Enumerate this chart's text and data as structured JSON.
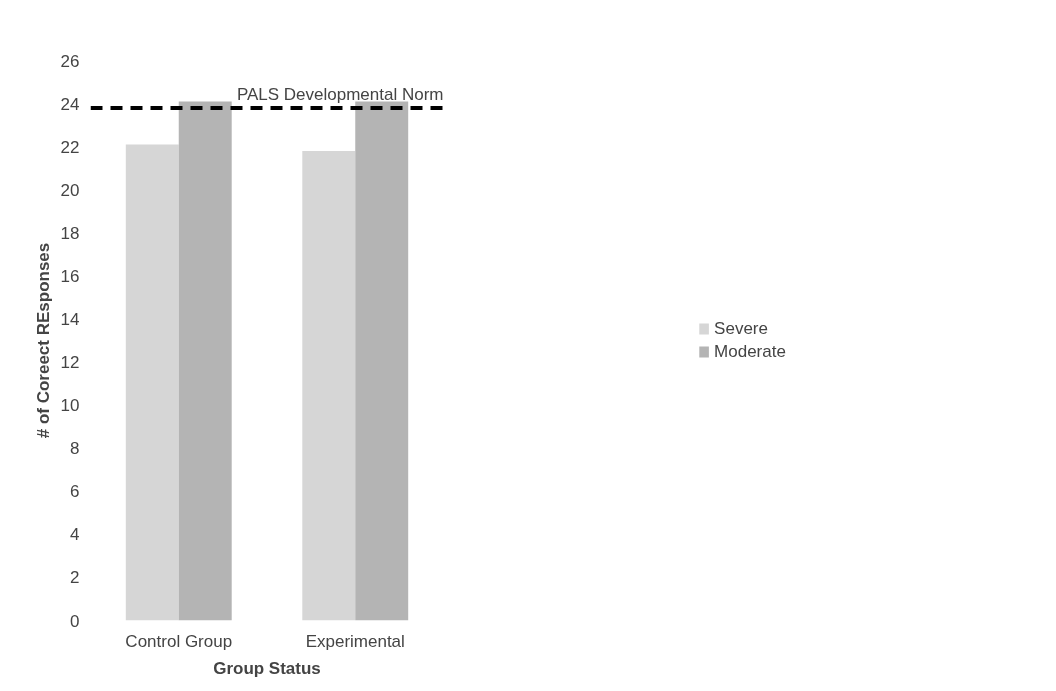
{
  "chart_data": {
    "type": "bar",
    "xlabel": "Group Status",
    "ylabel": "# of Coreect REsponses",
    "categories": [
      "Control Group",
      "Experimental"
    ],
    "series": [
      {
        "name": "Severe",
        "color": "#d6d6d6",
        "values": [
          22.1,
          21.8
        ]
      },
      {
        "name": "Moderate",
        "color": "#b4b4b4",
        "values": [
          24.1,
          24.1
        ]
      }
    ],
    "ylim": [
      0,
      26
    ],
    "yticks": [
      0,
      2,
      4,
      6,
      8,
      10,
      12,
      14,
      16,
      18,
      20,
      22,
      24,
      26
    ],
    "grid": false,
    "legend": "right",
    "ref_lines": [
      {
        "axis": "y",
        "value": 23.8,
        "label": "PALS Developmental Norm",
        "color": "#000000",
        "line_style": "dashed"
      }
    ]
  }
}
